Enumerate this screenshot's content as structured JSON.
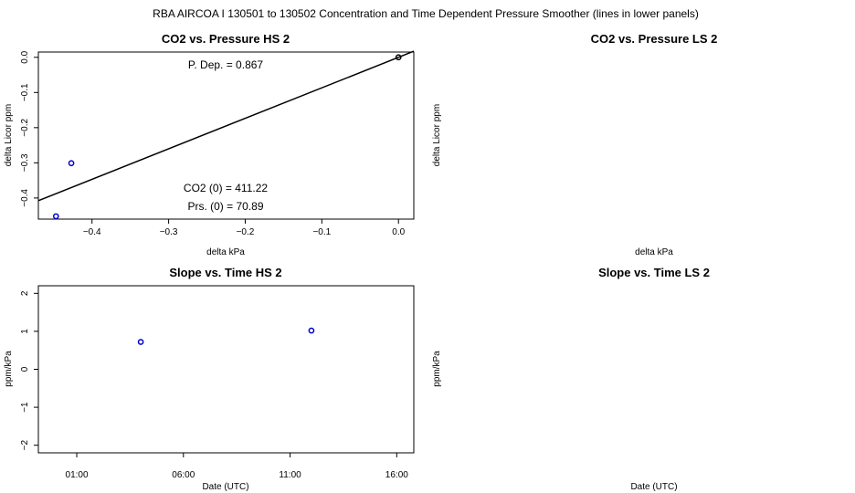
{
  "figure_title": "RBA   AIRCOA I   130501 to 130502   Concentration and Time Dependent Pressure Smoother (lines in lower panels)",
  "panels": {
    "co2_hs": {
      "title": "CO2 vs. Pressure HS 2",
      "xlabel": "delta kPa",
      "ylabel": "delta Licor ppm",
      "xticks": [
        "−0.4",
        "−0.3",
        "−0.2",
        "−0.1",
        "0.0"
      ],
      "yticks": [
        "0.0",
        "−0.1",
        "−0.2",
        "−0.3",
        "−0.4"
      ],
      "annotations": {
        "p_dep": "P. Dep. =  0.867",
        "co2_0": "CO2 (0) =  411.22",
        "prs_0": "Prs. (0) =  70.89"
      }
    },
    "co2_ls": {
      "title": "CO2 vs. Pressure LS 2",
      "xlabel": "delta kPa",
      "ylabel": "delta Licor ppm"
    },
    "slope_hs": {
      "title": "Slope vs. Time HS 2",
      "xlabel": "Date (UTC)",
      "ylabel": "ppm/kPa",
      "xticks": [
        "01:00",
        "06:00",
        "11:00",
        "16:00"
      ],
      "yticks": [
        "2",
        "1",
        "0",
        "−1",
        "−2"
      ]
    },
    "slope_ls": {
      "title": "Slope vs. Time LS 2",
      "xlabel": "Date (UTC)",
      "ylabel": "ppm/kPa"
    }
  },
  "chart_data": [
    {
      "type": "scatter",
      "title": "CO2 vs. Pressure HS 2",
      "xlabel": "delta kPa",
      "ylabel": "delta Licor ppm",
      "xlim": [
        -0.47,
        0.02
      ],
      "ylim": [
        -0.46,
        0.015
      ],
      "series": [
        {
          "color": "#0000cc",
          "points": [
            {
              "x": -0.427,
              "y": -0.301
            },
            {
              "x": -0.447,
              "y": -0.452
            }
          ]
        },
        {
          "color": "#000000",
          "points": [
            {
              "x": 0.0,
              "y": 0.0
            }
          ]
        }
      ],
      "fit_line": {
        "slope": 0.867,
        "intercept": 0.0,
        "color": "#000000"
      }
    },
    {
      "type": "scatter",
      "title": "CO2 vs. Pressure LS 2",
      "xlabel": "delta kPa",
      "ylabel": "delta Licor ppm",
      "series": []
    },
    {
      "type": "scatter",
      "title": "Slope vs. Time HS 2",
      "xlabel": "Date (UTC)",
      "ylabel": "ppm/kPa",
      "x_units": "hours (UTC)",
      "xlim": [
        -0.8,
        16.8
      ],
      "ylim": [
        -2.2,
        2.2
      ],
      "series": [
        {
          "color": "#0000cc",
          "points": [
            {
              "x": 4.0,
              "y": 0.72
            },
            {
              "x": 12.0,
              "y": 1.02
            }
          ]
        }
      ]
    },
    {
      "type": "scatter",
      "title": "Slope vs. Time LS 2",
      "xlabel": "Date (UTC)",
      "ylabel": "ppm/kPa",
      "series": []
    }
  ]
}
